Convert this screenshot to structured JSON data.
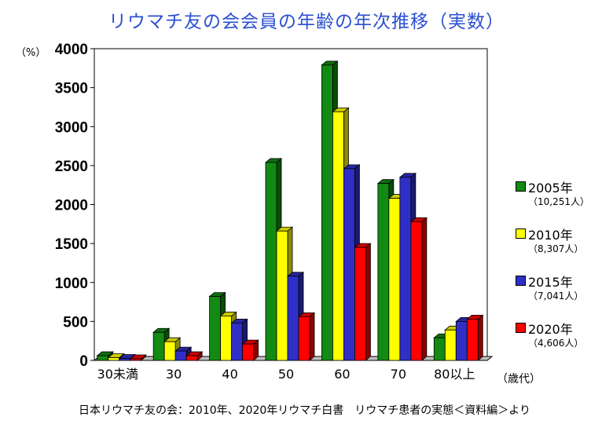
{
  "title": "リウマチ友の会会員の年齢の年次推移（実数）",
  "y_unit": "（%）",
  "x_unit": "（歳代）",
  "source": "日本リウマチ友の会：2010年、2020年リウマチ白書　リウマチ患者の実態＜資料編＞より",
  "chart_data": {
    "type": "bar",
    "categories": [
      "30未満",
      "30",
      "40",
      "50",
      "60",
      "70",
      "80以上"
    ],
    "series": [
      {
        "name": "2005年",
        "note": "（10,251人）",
        "color": "#138a13",
        "values": [
          60,
          360,
          820,
          2540,
          3790,
          2270,
          290
        ]
      },
      {
        "name": "2010年",
        "note": "（8,307人）",
        "color": "#ffff00",
        "values": [
          35,
          240,
          570,
          1660,
          3190,
          2080,
          390
        ]
      },
      {
        "name": "2015年",
        "note": "（7,041人）",
        "color": "#2f2fc8",
        "values": [
          25,
          120,
          480,
          1080,
          2460,
          2350,
          500
        ]
      },
      {
        "name": "2020年",
        "note": "（4,606人）",
        "color": "#ff0000",
        "values": [
          20,
          60,
          210,
          560,
          1450,
          1780,
          530
        ]
      }
    ],
    "ylim": [
      0,
      4000
    ],
    "yticks": [
      0,
      500,
      1000,
      1500,
      2000,
      2500,
      3000,
      3500,
      4000
    ],
    "ytick_labels": [
      "0",
      "500",
      "1000",
      "1500",
      "2000",
      "2500",
      "3000",
      "3500",
      "4000"
    ],
    "grid": false,
    "legend_position": "right"
  }
}
